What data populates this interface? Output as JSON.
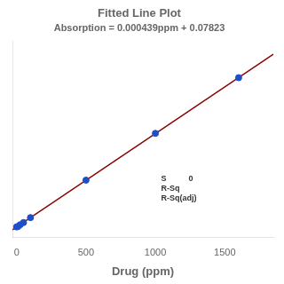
{
  "chart_data": {
    "type": "scatter",
    "title": "Fitted Line Plot",
    "subtitle": "Absorption = 0.000439ppm + 0.07823",
    "xlabel": "Drug (ppm)",
    "annotation": "S          0\nR-Sq\nR-Sq(adj)",
    "series": [
      {
        "type": "scatter",
        "color": "#1f4fc8",
        "x": [
          0,
          10,
          25,
          50,
          100,
          500,
          1000,
          1600
        ],
        "values": [
          0.0782,
          0.08,
          0.0882,
          0.0985,
          0.122,
          0.298,
          0.518,
          0.78
        ]
      },
      {
        "type": "line",
        "color": "#8b0000",
        "x": [
          -30,
          1850
        ],
        "values": [
          0.06506,
          0.89038
        ]
      }
    ],
    "xlim": [
      -30,
      1850
    ],
    "ylim": [
      0.03,
      0.95
    ],
    "xticks": [
      0,
      500,
      1000,
      1500
    ],
    "tick_labels": "x",
    "grid": false
  }
}
